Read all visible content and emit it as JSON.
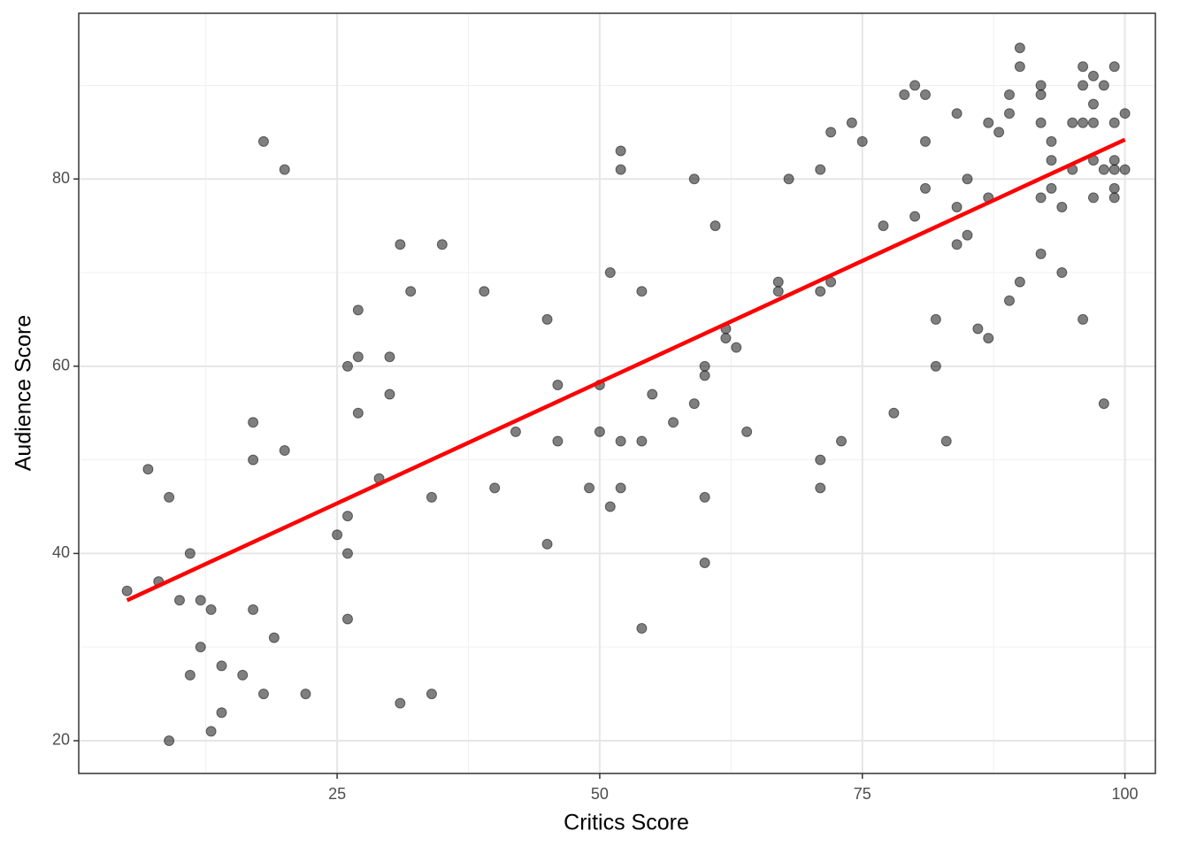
{
  "chart_data": {
    "type": "scatter",
    "xlabel": "Critics Score",
    "ylabel": "Audience Score",
    "xlim": [
      0.4,
      102.9
    ],
    "ylim": [
      16.5,
      97.7
    ],
    "xticks": [
      25,
      50,
      75,
      100
    ],
    "yticks": [
      20,
      40,
      60,
      80
    ],
    "xminor": [
      12.5,
      37.5,
      62.5,
      87.5
    ],
    "yminor": [
      30,
      50,
      70,
      90
    ],
    "grid": true,
    "series": [
      {
        "color": "#000000",
        "alpha": 0.5,
        "x": [
          5,
          7,
          8,
          9,
          9,
          10,
          11,
          11,
          12,
          12,
          13,
          13,
          14,
          14,
          16,
          17,
          17,
          17,
          18,
          18,
          19,
          20,
          20,
          22,
          25,
          26,
          26,
          26,
          26,
          27,
          27,
          27,
          29,
          30,
          30,
          31,
          31,
          32,
          34,
          34,
          35,
          39,
          40,
          42,
          45,
          45,
          46,
          46,
          49,
          50,
          50,
          51,
          51,
          52,
          52,
          52,
          52,
          54,
          54,
          54,
          55,
          57,
          59,
          59,
          60,
          60,
          60,
          60,
          61,
          62,
          62,
          63,
          64,
          67,
          67,
          68,
          71,
          71,
          71,
          71,
          72,
          72,
          73,
          74,
          75,
          77,
          78,
          79,
          80,
          80,
          81,
          81,
          81,
          82,
          82,
          83,
          84,
          84,
          84,
          85,
          85,
          86,
          87,
          87,
          87,
          88,
          89,
          89,
          89,
          90,
          90,
          90,
          92,
          92,
          92,
          92,
          92,
          93,
          93,
          93,
          94,
          94,
          95,
          95,
          96,
          96,
          96,
          96,
          97,
          97,
          97,
          97,
          97,
          98,
          98,
          98,
          99,
          99,
          99,
          99,
          99,
          99,
          100,
          100
        ],
        "y": [
          36,
          49,
          37,
          46,
          20,
          35,
          40,
          27,
          35,
          30,
          34,
          21,
          28,
          23,
          27,
          54,
          50,
          34,
          84,
          25,
          31,
          81,
          51,
          25,
          42,
          60,
          44,
          40,
          33,
          66,
          61,
          55,
          48,
          61,
          57,
          73,
          24,
          68,
          46,
          25,
          73,
          68,
          47,
          53,
          65,
          41,
          58,
          52,
          47,
          58,
          53,
          70,
          45,
          83,
          81,
          52,
          47,
          68,
          52,
          32,
          57,
          54,
          80,
          56,
          60,
          59,
          46,
          39,
          75,
          64,
          63,
          62,
          53,
          69,
          68,
          80,
          81,
          68,
          50,
          47,
          85,
          69,
          52,
          86,
          84,
          75,
          55,
          89,
          90,
          76,
          89,
          84,
          79,
          65,
          60,
          52,
          87,
          77,
          73,
          80,
          74,
          64,
          86,
          78,
          63,
          85,
          89,
          87,
          67,
          94,
          92,
          69,
          90,
          89,
          86,
          78,
          72,
          84,
          82,
          79,
          77,
          70,
          86,
          81,
          92,
          90,
          86,
          65,
          91,
          88,
          86,
          82,
          78,
          90,
          81,
          56,
          92,
          86,
          82,
          81,
          79,
          78,
          87,
          81
        ]
      }
    ],
    "trend": {
      "x": [
        5,
        100
      ],
      "y": [
        35,
        84.2
      ],
      "color": "#ff0000"
    }
  }
}
